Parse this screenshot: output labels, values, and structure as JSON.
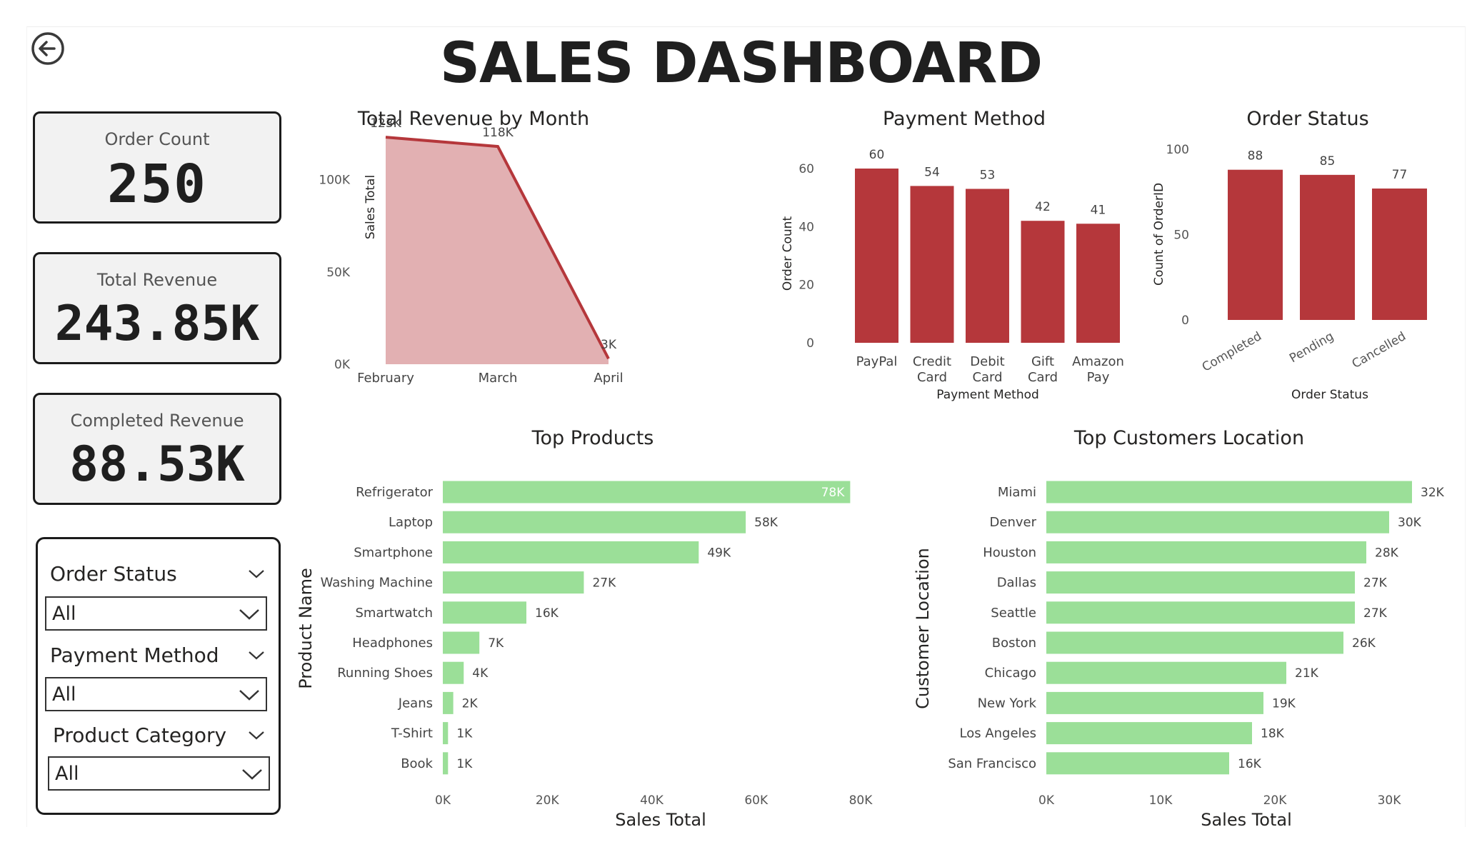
{
  "header": {
    "title": "SALES DASHBOARD",
    "back_icon": "arrow-left-circle-icon"
  },
  "kpis": [
    {
      "label": "Order Count",
      "value": "250"
    },
    {
      "label": "Total Revenue",
      "value": "243.85K"
    },
    {
      "label": "Completed Revenue",
      "value": "88.53K"
    }
  ],
  "filters": [
    {
      "label": "Order Status",
      "value": "All"
    },
    {
      "label": "Payment Method",
      "value": "All"
    },
    {
      "label": "Product Category",
      "value": "All"
    }
  ],
  "colors": {
    "accent_red": "#b5373b",
    "area_fill": "#e2b0b2",
    "bar_green": "#9bdf98",
    "text_dark": "#252423"
  },
  "chart_data": [
    {
      "id": "revenue_by_month",
      "type": "area",
      "title": "Total Revenue by Month",
      "ylabel": "Sales Total",
      "categories": [
        "February",
        "March",
        "April"
      ],
      "values": [
        123000,
        118000,
        3000
      ],
      "data_labels": [
        "123K",
        "118K",
        "3K"
      ],
      "yticks": [
        "0K",
        "50K",
        "100K"
      ],
      "ytick_values": [
        0,
        50000,
        100000
      ],
      "ylim": [
        0,
        125000
      ]
    },
    {
      "id": "payment_method",
      "type": "bar",
      "title": "Payment Method",
      "xlabel": "Payment Method",
      "ylabel": "Order Count",
      "categories": [
        [
          "PayPal"
        ],
        [
          "Credit",
          "Card"
        ],
        [
          "Debit",
          "Card"
        ],
        [
          "Gift",
          "Card"
        ],
        [
          "Amazon",
          "Pay"
        ]
      ],
      "values": [
        60,
        54,
        53,
        42,
        41
      ],
      "yticks": [
        "0",
        "20",
        "40",
        "60"
      ],
      "ytick_values": [
        0,
        20,
        40,
        60
      ],
      "ylim": [
        0,
        60
      ]
    },
    {
      "id": "order_status",
      "type": "bar",
      "title": "Order Status",
      "xlabel": "Order Status",
      "ylabel": "Count of OrderID",
      "categories": [
        "Completed",
        "Pending",
        "Cancelled"
      ],
      "values": [
        88,
        85,
        77
      ],
      "yticks": [
        "0",
        "50",
        "100"
      ],
      "ytick_values": [
        0,
        50,
        100
      ],
      "ylim": [
        0,
        100
      ]
    },
    {
      "id": "top_products",
      "type": "bar",
      "orientation": "horizontal",
      "title": "Top Products",
      "xlabel": "Sales Total",
      "ylabel": "Product Name",
      "categories": [
        "Refrigerator",
        "Laptop",
        "Smartphone",
        "Washing Machine",
        "Smartwatch",
        "Headphones",
        "Running Shoes",
        "Jeans",
        "T-Shirt",
        "Book"
      ],
      "values": [
        78000,
        58000,
        49000,
        27000,
        16000,
        7000,
        4000,
        2000,
        1000,
        1000
      ],
      "data_labels": [
        "78K",
        "58K",
        "49K",
        "27K",
        "16K",
        "7K",
        "4K",
        "2K",
        "1K",
        "1K"
      ],
      "xticks": [
        "0K",
        "20K",
        "40K",
        "60K",
        "80K"
      ],
      "xtick_values": [
        0,
        20000,
        40000,
        60000,
        80000
      ],
      "xlim": [
        0,
        80000
      ]
    },
    {
      "id": "top_customers_location",
      "type": "bar",
      "orientation": "horizontal",
      "title": "Top Customers Location",
      "xlabel": "Sales Total",
      "ylabel": "Customer Location",
      "categories": [
        "Miami",
        "Denver",
        "Houston",
        "Dallas",
        "Seattle",
        "Boston",
        "Chicago",
        "New York",
        "Los Angeles",
        "San Francisco"
      ],
      "values": [
        32000,
        30000,
        28000,
        27000,
        27000,
        26000,
        21000,
        19000,
        18000,
        16000
      ],
      "data_labels": [
        "32K",
        "30K",
        "28K",
        "27K",
        "27K",
        "26K",
        "21K",
        "19K",
        "18K",
        "16K"
      ],
      "xticks": [
        "0K",
        "10K",
        "20K",
        "30K"
      ],
      "xtick_values": [
        0,
        10000,
        20000,
        30000
      ],
      "xlim": [
        0,
        30000
      ]
    }
  ]
}
